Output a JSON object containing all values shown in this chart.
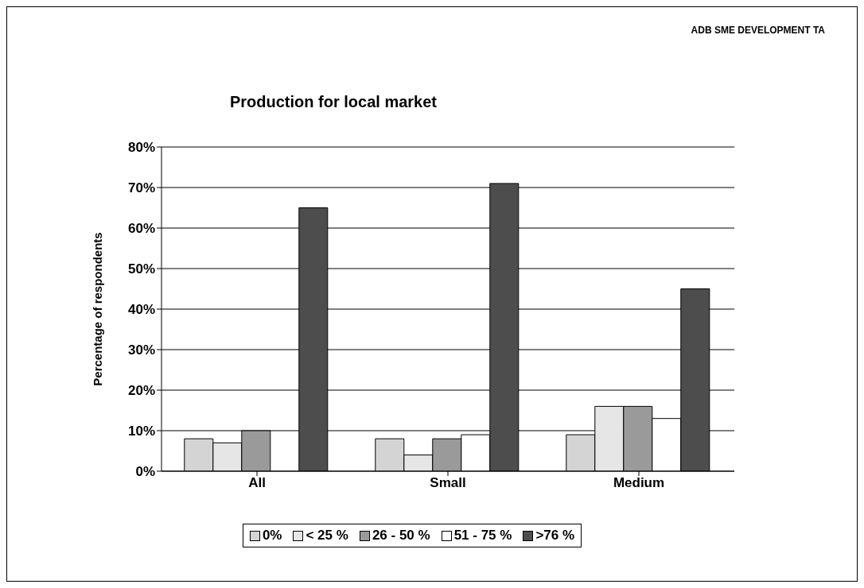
{
  "chart_data": {
    "type": "bar",
    "title": "Production for local market",
    "ylabel": "Percentage of respondents",
    "annotations": [
      "ADB SME DEVELOPMENT TA"
    ],
    "categories": [
      "All",
      "Small",
      "Medium"
    ],
    "series": [
      {
        "name": "0%",
        "color": "#d4d4d4",
        "values": [
          8,
          8,
          9
        ]
      },
      {
        "name": "< 25 %",
        "color": "#e6e6e6",
        "values": [
          7,
          4,
          16
        ]
      },
      {
        "name": "26 - 50 %",
        "color": "#9a9a9a",
        "values": [
          10,
          8,
          16
        ]
      },
      {
        "name": "51 - 75 %",
        "color": "#ffffff",
        "values": [
          0,
          9,
          13
        ]
      },
      {
        "name": ">76 %",
        "color": "#4d4d4d",
        "values": [
          65,
          71,
          45
        ]
      }
    ],
    "ylim": [
      0,
      80
    ],
    "yticks": [
      {
        "value": 0,
        "label": "0%"
      },
      {
        "value": 10,
        "label": "10%"
      },
      {
        "value": 20,
        "label": "20%"
      },
      {
        "value": 30,
        "label": "30%"
      },
      {
        "value": 40,
        "label": "40%"
      },
      {
        "value": 50,
        "label": "50%"
      },
      {
        "value": 60,
        "label": "60%"
      },
      {
        "value": 70,
        "label": "70%"
      },
      {
        "value": 80,
        "label": "80%"
      }
    ],
    "grid": "y",
    "legend": "bottom"
  }
}
